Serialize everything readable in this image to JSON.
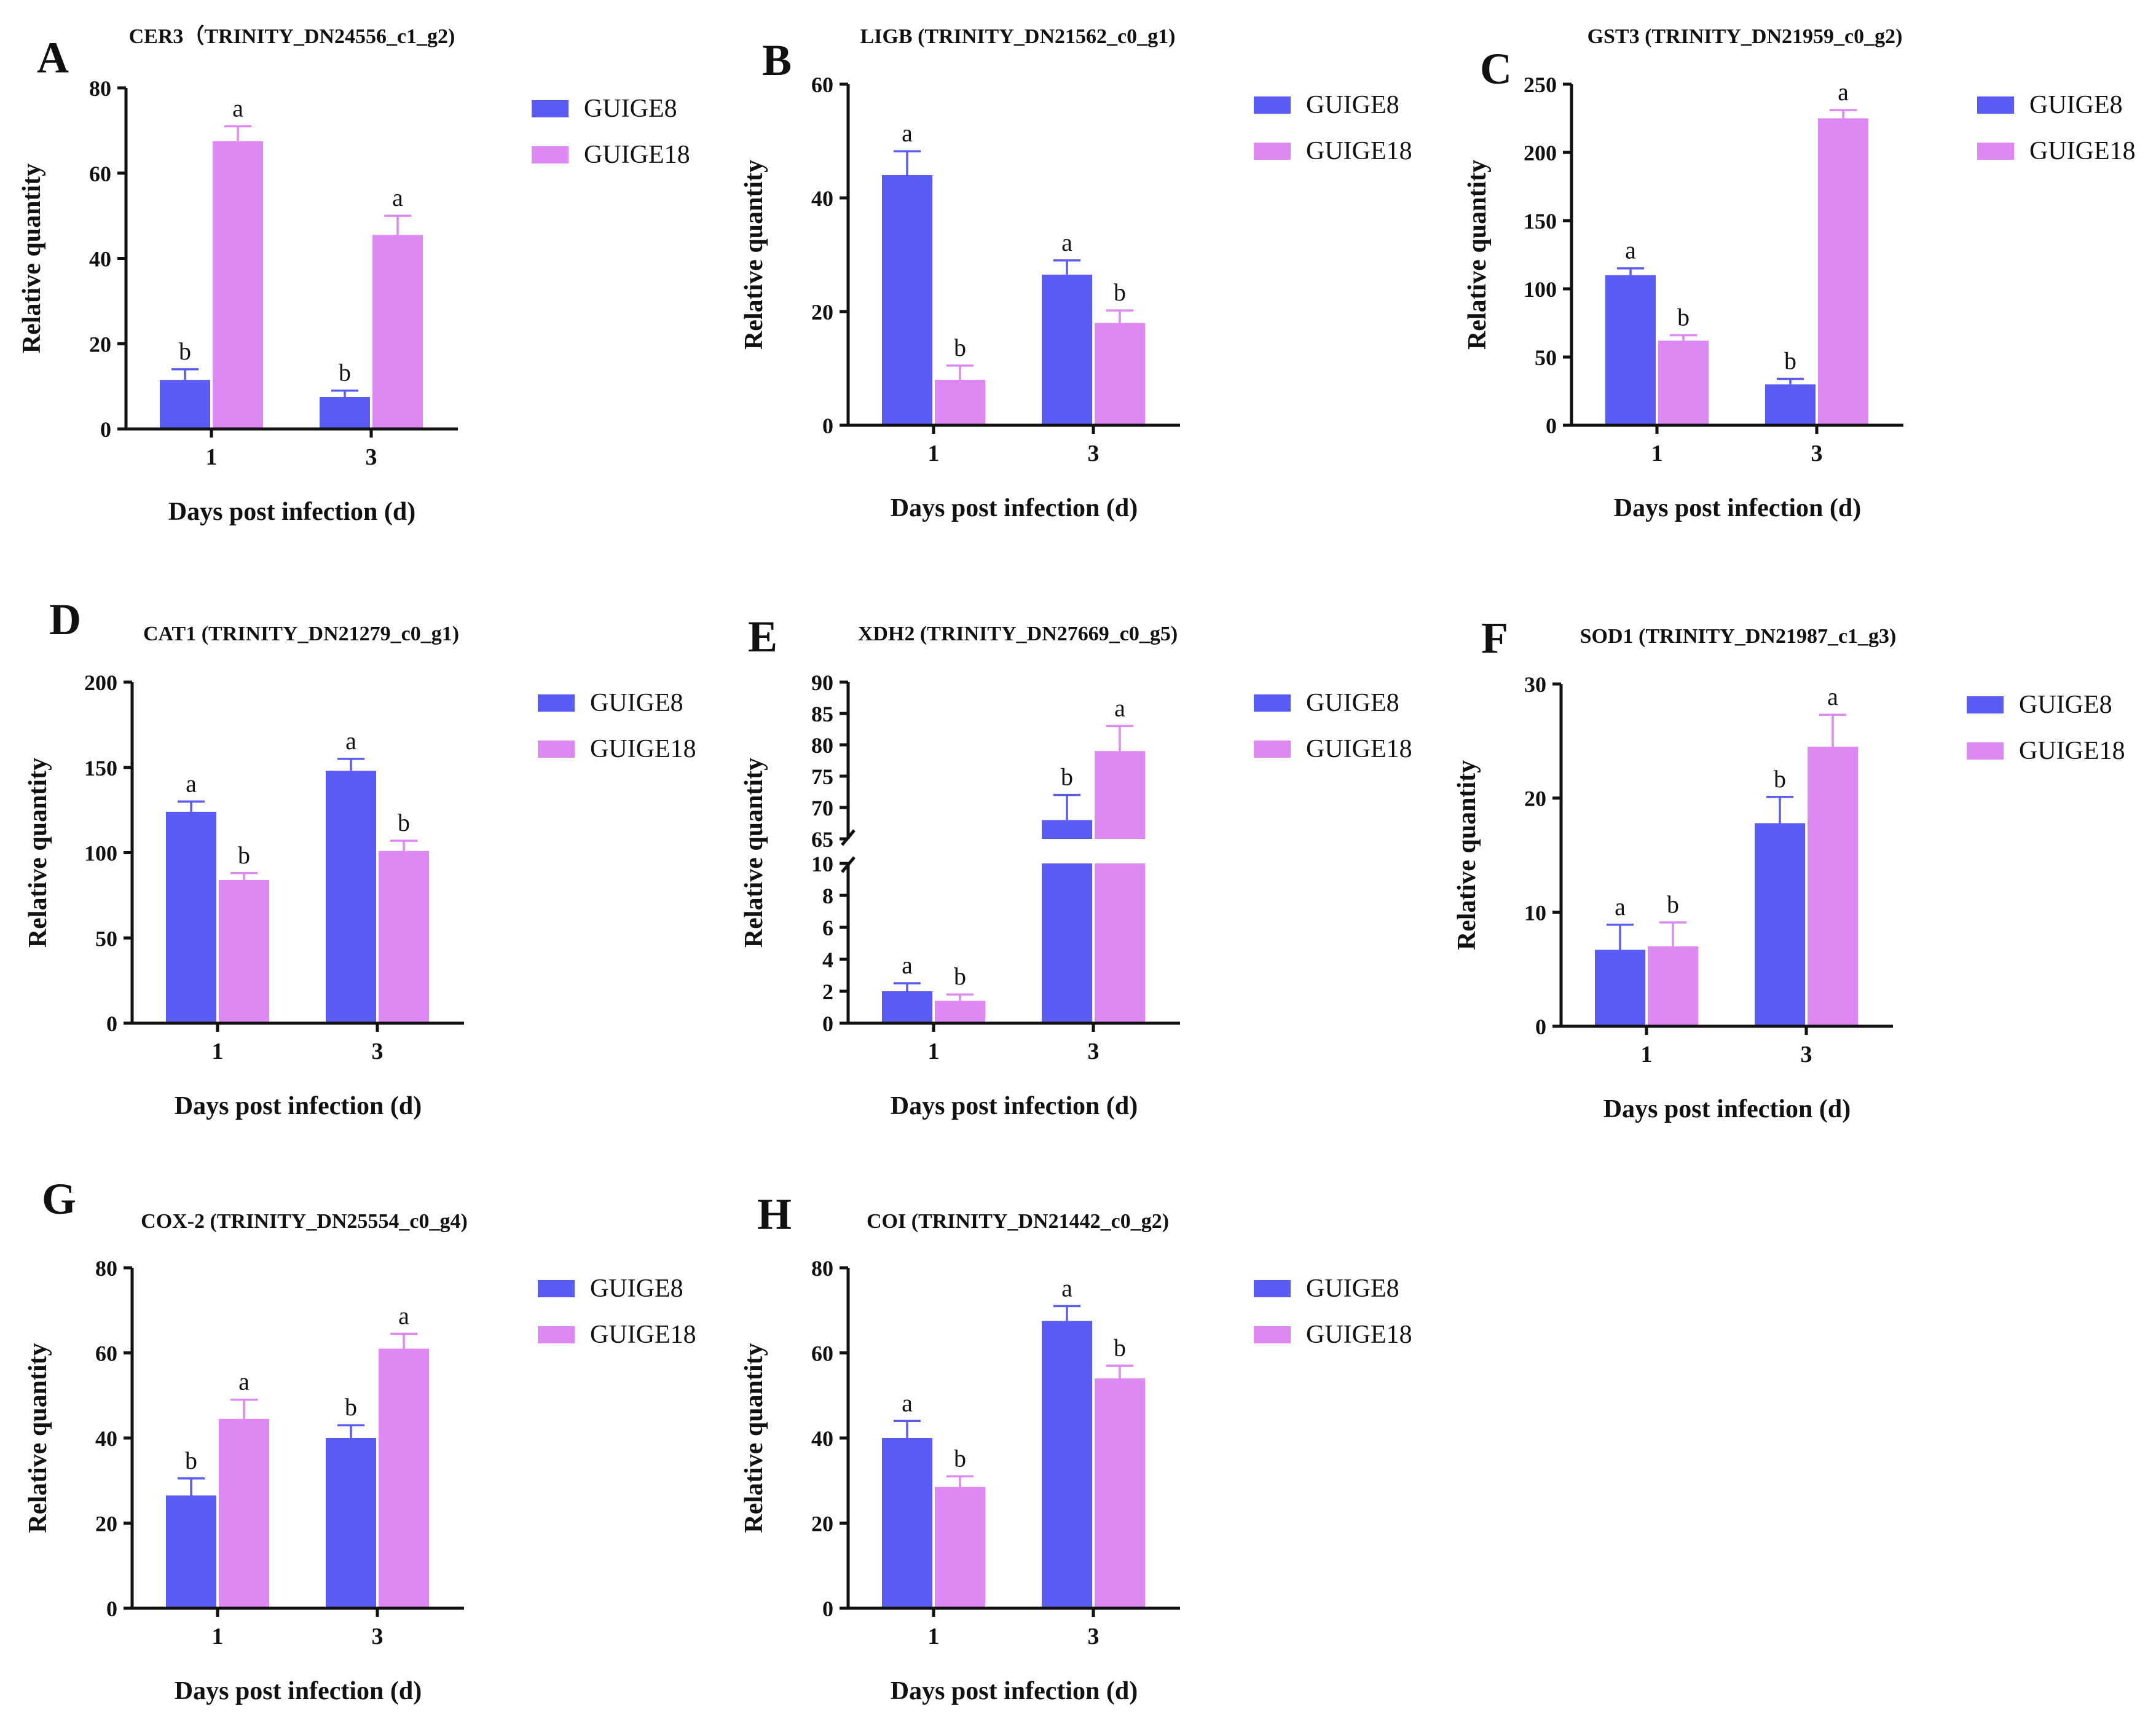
{
  "colors": {
    "guige8": "#5a5af5",
    "guige18": "#dd88f3",
    "axis": "#111111"
  },
  "legend_labels": [
    "GUIGE8",
    "GUIGE18"
  ],
  "chart_data": [
    {
      "letter": "A",
      "type": "bar",
      "title": "CER3（TRINITY_DN24556_c1_g2)",
      "xlabel": "Days post infection (d)",
      "ylabel": "Relative quantity",
      "categories": [
        "1",
        "3"
      ],
      "ylim": [
        0,
        80
      ],
      "yticks": [
        "0",
        "20",
        "40",
        "60",
        "80"
      ],
      "series": [
        {
          "name": "GUIGE8",
          "values": [
            11.5,
            7.5
          ],
          "errors": [
            2.5,
            1.5
          ],
          "letters": [
            "b",
            "b"
          ]
        },
        {
          "name": "GUIGE18",
          "values": [
            67.5,
            45.5
          ],
          "errors": [
            3.5,
            4.5
          ],
          "letters": [
            "a",
            "a"
          ]
        }
      ]
    },
    {
      "letter": "B",
      "type": "bar",
      "title": "LIGB (TRINITY_DN21562_c0_g1)",
      "xlabel": "Days post infection (d)",
      "ylabel": "Relative quantity",
      "categories": [
        "1",
        "3"
      ],
      "ylim": [
        0,
        60
      ],
      "yticks": [
        "0",
        "20",
        "40",
        "60"
      ],
      "series": [
        {
          "name": "GUIGE8",
          "values": [
            44,
            26.5
          ],
          "errors": [
            4.2,
            2.5
          ],
          "letters": [
            "a",
            "a"
          ]
        },
        {
          "name": "GUIGE18",
          "values": [
            8,
            18
          ],
          "errors": [
            2.5,
            2.2
          ],
          "letters": [
            "b",
            "b"
          ]
        }
      ]
    },
    {
      "letter": "C",
      "type": "bar",
      "title": "GST3 (TRINITY_DN21959_c0_g2)",
      "xlabel": "Days post infection (d)",
      "ylabel": "Relative quantity",
      "categories": [
        "1",
        "3"
      ],
      "ylim": [
        0,
        250
      ],
      "yticks": [
        "0",
        "50",
        "100",
        "150",
        "200",
        "250"
      ],
      "series": [
        {
          "name": "GUIGE8",
          "values": [
            110,
            30
          ],
          "errors": [
            5,
            4
          ],
          "letters": [
            "a",
            "b"
          ]
        },
        {
          "name": "GUIGE18",
          "values": [
            62,
            225
          ],
          "errors": [
            4,
            6
          ],
          "letters": [
            "b",
            "a"
          ]
        }
      ]
    },
    {
      "letter": "D",
      "type": "bar",
      "title": "CAT1 (TRINITY_DN21279_c0_g1)",
      "xlabel": "Days post infection (d)",
      "ylabel": "Relative quantity",
      "categories": [
        "1",
        "3"
      ],
      "ylim": [
        0,
        200
      ],
      "yticks": [
        "0",
        "50",
        "100",
        "150",
        "200"
      ],
      "series": [
        {
          "name": "GUIGE8",
          "values": [
            124,
            148
          ],
          "errors": [
            6,
            7
          ],
          "letters": [
            "a",
            "a"
          ]
        },
        {
          "name": "GUIGE18",
          "values": [
            84,
            101
          ],
          "errors": [
            4,
            6
          ],
          "letters": [
            "b",
            "b"
          ]
        }
      ]
    },
    {
      "letter": "E",
      "type": "bar",
      "title": "XDH2 (TRINITY_DN27669_c0_g5)",
      "xlabel": "Days post infection (d)",
      "ylabel": "Relative quantity",
      "categories": [
        "1",
        "3"
      ],
      "broken_axis": {
        "lower": [
          0,
          10
        ],
        "upper": [
          65,
          90
        ],
        "lower_ticks": [
          "0",
          "2",
          "4",
          "6",
          "8",
          "10"
        ],
        "upper_ticks": [
          "65",
          "70",
          "75",
          "80",
          "85",
          "90"
        ]
      },
      "series": [
        {
          "name": "GUIGE8",
          "values": [
            2,
            68
          ],
          "errors": [
            0.5,
            4
          ],
          "letters": [
            "a",
            "b"
          ]
        },
        {
          "name": "GUIGE18",
          "values": [
            1.4,
            79
          ],
          "errors": [
            0.4,
            4
          ],
          "letters": [
            "b",
            "a"
          ]
        }
      ]
    },
    {
      "letter": "F",
      "type": "bar",
      "title": "SOD1 (TRINITY_DN21987_c1_g3)",
      "xlabel": "Days post infection (d)",
      "ylabel": "Relative quantity",
      "categories": [
        "1",
        "3"
      ],
      "ylim": [
        0,
        30
      ],
      "yticks": [
        "0",
        "10",
        "20",
        "30"
      ],
      "series": [
        {
          "name": "GUIGE8",
          "values": [
            6.7,
            17.8
          ],
          "errors": [
            2.2,
            2.3
          ],
          "letters": [
            "a",
            "b"
          ]
        },
        {
          "name": "GUIGE18",
          "values": [
            7,
            24.5
          ],
          "errors": [
            2.1,
            2.8
          ],
          "letters": [
            "b",
            "a"
          ]
        }
      ]
    },
    {
      "letter": "G",
      "type": "bar",
      "title": "COX-2 (TRINITY_DN25554_c0_g4)",
      "xlabel": "Days post infection (d)",
      "ylabel": "Relative quantity",
      "categories": [
        "1",
        "3"
      ],
      "ylim": [
        0,
        80
      ],
      "yticks": [
        "0",
        "20",
        "40",
        "60",
        "80"
      ],
      "series": [
        {
          "name": "GUIGE8",
          "values": [
            26.5,
            40
          ],
          "errors": [
            4,
            3
          ],
          "letters": [
            "b",
            "b"
          ]
        },
        {
          "name": "GUIGE18",
          "values": [
            44.5,
            61
          ],
          "errors": [
            4.5,
            3.5
          ],
          "letters": [
            "a",
            "a"
          ]
        }
      ]
    },
    {
      "letter": "H",
      "type": "bar",
      "title": "COI (TRINITY_DN21442_c0_g2)",
      "xlabel": "Days post infection (d)",
      "ylabel": "Relative quantity",
      "categories": [
        "1",
        "3"
      ],
      "ylim": [
        0,
        80
      ],
      "yticks": [
        "0",
        "20",
        "40",
        "60",
        "80"
      ],
      "series": [
        {
          "name": "GUIGE8",
          "values": [
            40,
            67.5
          ],
          "errors": [
            4,
            3.5
          ],
          "letters": [
            "a",
            "a"
          ]
        },
        {
          "name": "GUIGE18",
          "values": [
            28.5,
            54
          ],
          "errors": [
            2.5,
            3
          ],
          "letters": [
            "b",
            "b"
          ]
        }
      ]
    }
  ]
}
